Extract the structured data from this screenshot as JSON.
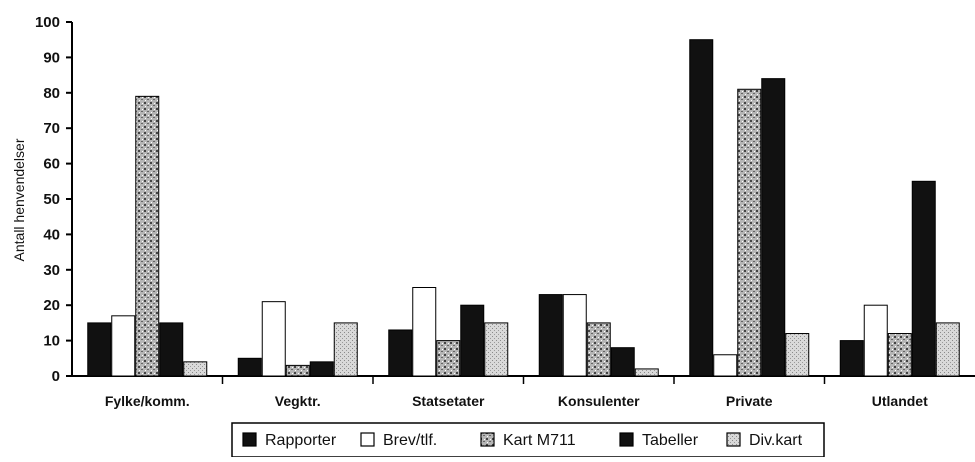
{
  "chart_data": {
    "type": "bar",
    "title": "",
    "xlabel": "",
    "ylabel": "Antall henvendelser",
    "ylim": [
      0,
      100
    ],
    "yticks": [
      0,
      10,
      20,
      30,
      40,
      50,
      60,
      70,
      80,
      90,
      100
    ],
    "grid": false,
    "legend_position": "bottom",
    "categories": [
      "Fylke/komm.",
      "Vegktr.",
      "Statsetater",
      "Konsulenter",
      "Private",
      "Utlandet"
    ],
    "series": [
      {
        "name": "Rapporter",
        "values": [
          15,
          5,
          13,
          23,
          95,
          10
        ],
        "fill": "#111111",
        "pattern": "solid"
      },
      {
        "name": "Brev/tlf.",
        "values": [
          17,
          21,
          25,
          23,
          6,
          20
        ],
        "fill": "#ffffff",
        "pattern": "solid"
      },
      {
        "name": "Kart M711",
        "values": [
          79,
          3,
          10,
          15,
          81,
          12
        ],
        "fill": "#9a9a9a",
        "pattern": "speckle"
      },
      {
        "name": "Tabeller",
        "values": [
          15,
          4,
          20,
          8,
          84,
          55
        ],
        "fill": "#111111",
        "pattern": "solid"
      },
      {
        "name": "Div.kart",
        "values": [
          4,
          15,
          15,
          2,
          12,
          15
        ],
        "fill": "#c8c8c8",
        "pattern": "light-dots"
      }
    ]
  }
}
